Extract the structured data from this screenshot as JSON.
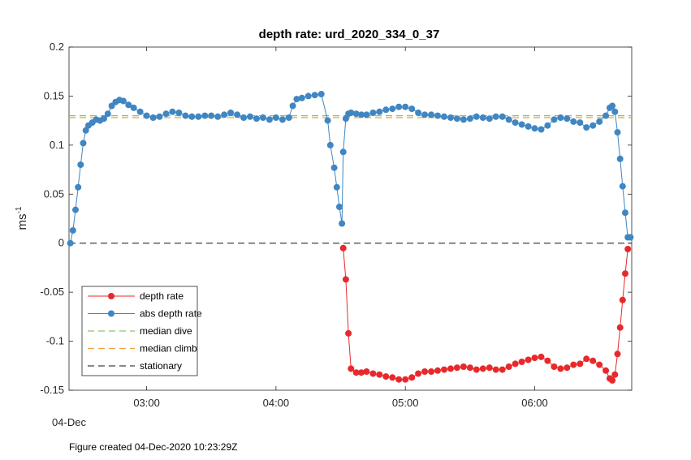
{
  "chart_data": {
    "type": "line",
    "title": "depth rate: urd_2020_334_0_37",
    "ylabel_base": "ms",
    "ylabel_exp": "-1",
    "xlabel": "",
    "date_label": "04-Dec",
    "footer": "Figure created 04-Dec-2020 10:23:29Z",
    "ylim": [
      -0.15,
      0.2
    ],
    "xlim": [
      2.4,
      6.75
    ],
    "yticks": [
      -0.15,
      -0.1,
      -0.05,
      0,
      0.05,
      0.1,
      0.15,
      0.2
    ],
    "ytick_labels": [
      "-0.15",
      "-0.1",
      "-0.05",
      "0",
      "0.05",
      "0.1",
      "0.15",
      "0.2"
    ],
    "xticks": [
      3,
      4,
      5,
      6
    ],
    "xtick_labels": [
      "03:00",
      "04:00",
      "05:00",
      "06:00"
    ],
    "median_dive": 0.13,
    "median_climb": 0.128,
    "stationary": 0,
    "colors": {
      "depth_rate": "#e8292c",
      "abs_depth_rate": "#3f86c2",
      "median_dive": "#86c86a",
      "median_climb": "#f0a03c",
      "stationary": "#404040"
    },
    "legend": [
      {
        "name": "depth rate",
        "style": "red-line-dot"
      },
      {
        "name": "abs depth rate",
        "style": "blue-line-dot"
      },
      {
        "name": "median dive",
        "style": "green-dash"
      },
      {
        "name": "median climb",
        "style": "orange-dash"
      },
      {
        "name": "stationary",
        "style": "black-dash"
      }
    ],
    "legend_location": "bottom-left",
    "grid": false,
    "series": [
      {
        "name": "depth rate",
        "x": [
          4.52,
          4.54,
          4.56,
          4.58,
          4.62,
          4.66,
          4.7,
          4.75,
          4.8,
          4.85,
          4.9,
          4.95,
          5.0,
          5.05,
          5.1,
          5.15,
          5.2,
          5.25,
          5.3,
          5.35,
          5.4,
          5.45,
          5.5,
          5.55,
          5.6,
          5.65,
          5.7,
          5.75,
          5.8,
          5.85,
          5.9,
          5.95,
          6.0,
          6.05,
          6.1,
          6.15,
          6.2,
          6.25,
          6.3,
          6.35,
          6.4,
          6.45,
          6.5,
          6.55,
          6.58,
          6.6,
          6.62,
          6.64,
          6.66,
          6.68,
          6.7,
          6.72
        ],
        "y": [
          -0.005,
          -0.037,
          -0.092,
          -0.128,
          -0.132,
          -0.132,
          -0.131,
          -0.133,
          -0.134,
          -0.136,
          -0.137,
          -0.139,
          -0.139,
          -0.137,
          -0.133,
          -0.131,
          -0.131,
          -0.13,
          -0.129,
          -0.128,
          -0.127,
          -0.126,
          -0.127,
          -0.129,
          -0.128,
          -0.127,
          -0.129,
          -0.129,
          -0.126,
          -0.123,
          -0.121,
          -0.119,
          -0.117,
          -0.116,
          -0.12,
          -0.126,
          -0.128,
          -0.127,
          -0.124,
          -0.123,
          -0.118,
          -0.12,
          -0.124,
          -0.13,
          -0.138,
          -0.14,
          -0.134,
          -0.113,
          -0.086,
          -0.058,
          -0.031,
          -0.006
        ]
      },
      {
        "name": "abs depth rate",
        "x": [
          2.41,
          2.43,
          2.45,
          2.47,
          2.49,
          2.51,
          2.53,
          2.55,
          2.58,
          2.61,
          2.64,
          2.67,
          2.7,
          2.73,
          2.76,
          2.79,
          2.82,
          2.86,
          2.9,
          2.95,
          3.0,
          3.05,
          3.1,
          3.15,
          3.2,
          3.25,
          3.3,
          3.35,
          3.4,
          3.45,
          3.5,
          3.55,
          3.6,
          3.65,
          3.7,
          3.75,
          3.8,
          3.85,
          3.9,
          3.95,
          4.0,
          4.05,
          4.1,
          4.13,
          4.16,
          4.2,
          4.25,
          4.3,
          4.35,
          4.4,
          4.42,
          4.45,
          4.47,
          4.49,
          4.51,
          4.52,
          4.54,
          4.56,
          4.58,
          4.62,
          4.66,
          4.7,
          4.75,
          4.8,
          4.85,
          4.9,
          4.95,
          5.0,
          5.05,
          5.1,
          5.15,
          5.2,
          5.25,
          5.3,
          5.35,
          5.4,
          5.45,
          5.5,
          5.55,
          5.6,
          5.65,
          5.7,
          5.75,
          5.8,
          5.85,
          5.9,
          5.95,
          6.0,
          6.05,
          6.1,
          6.15,
          6.2,
          6.25,
          6.3,
          6.35,
          6.4,
          6.45,
          6.5,
          6.55,
          6.58,
          6.6,
          6.62,
          6.64,
          6.66,
          6.68,
          6.7,
          6.72,
          6.74
        ],
        "y": [
          0.0,
          0.013,
          0.034,
          0.057,
          0.08,
          0.102,
          0.115,
          0.12,
          0.123,
          0.126,
          0.125,
          0.127,
          0.132,
          0.14,
          0.144,
          0.146,
          0.145,
          0.141,
          0.138,
          0.134,
          0.13,
          0.128,
          0.129,
          0.132,
          0.134,
          0.133,
          0.13,
          0.129,
          0.129,
          0.13,
          0.13,
          0.129,
          0.131,
          0.133,
          0.131,
          0.128,
          0.129,
          0.127,
          0.128,
          0.126,
          0.128,
          0.126,
          0.128,
          0.14,
          0.147,
          0.148,
          0.15,
          0.151,
          0.152,
          0.125,
          0.1,
          0.077,
          0.057,
          0.037,
          0.02,
          0.093,
          0.127,
          0.132,
          0.133,
          0.132,
          0.131,
          0.131,
          0.133,
          0.134,
          0.136,
          0.137,
          0.139,
          0.139,
          0.137,
          0.133,
          0.131,
          0.131,
          0.13,
          0.129,
          0.128,
          0.127,
          0.126,
          0.127,
          0.129,
          0.128,
          0.127,
          0.129,
          0.129,
          0.126,
          0.123,
          0.121,
          0.119,
          0.117,
          0.116,
          0.12,
          0.126,
          0.128,
          0.127,
          0.124,
          0.123,
          0.118,
          0.12,
          0.124,
          0.13,
          0.138,
          0.14,
          0.134,
          0.113,
          0.086,
          0.058,
          0.031,
          0.006,
          0.006
        ]
      }
    ]
  }
}
